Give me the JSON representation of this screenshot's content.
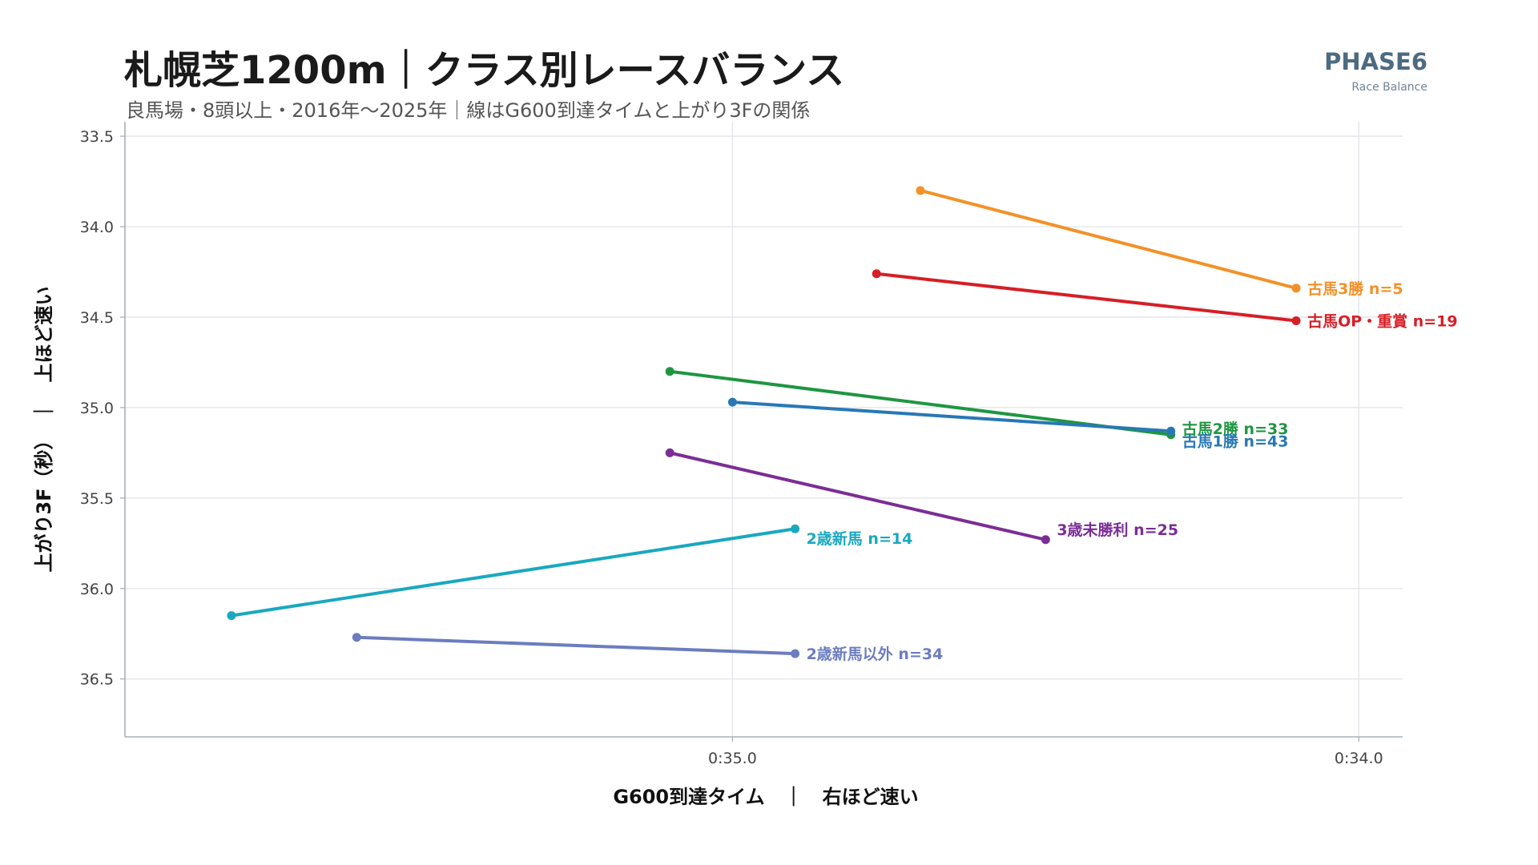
{
  "header": {
    "title": "札幌芝1200m｜クラス別レースバランス",
    "subtitle": "良馬場・8頭以上・2016年〜2025年｜線はG600到達タイムと上がり3Fの関係",
    "brand": "PHASE6",
    "brand_sub": "Race Balance"
  },
  "chart_data": {
    "type": "line",
    "title": "札幌芝1200m｜クラス別レースバランス",
    "subtitle": "良馬場・8頭以上・2016年〜2025年｜線はG600到達タイムと上がり3Fの関係",
    "xlabel": "G600到達タイム　｜　右ほど速い",
    "ylabel": "上がり3F（秒）　｜　上ほど速い",
    "x_reversed": true,
    "y_reversed": true,
    "xlim": [
      35.97,
      33.93
    ],
    "ylim": [
      36.82,
      33.42
    ],
    "x_ticks": [
      35.0,
      34.0
    ],
    "x_tick_labels": [
      "0:35.0",
      "0:34.0"
    ],
    "y_ticks": [
      33.5,
      34.0,
      34.5,
      35.0,
      35.5,
      36.0,
      36.5
    ],
    "y_tick_labels": [
      "33.5",
      "34.0",
      "34.5",
      "35.0",
      "35.5",
      "36.0",
      "36.5"
    ],
    "grid": true,
    "series": [
      {
        "name": "古馬3勝",
        "n": "n=5",
        "color": "#f39128",
        "points": [
          [
            34.7,
            33.8
          ],
          [
            34.1,
            34.34
          ]
        ]
      },
      {
        "name": "古馬OP・重賞",
        "n": "n=19",
        "color": "#d61f26",
        "points": [
          [
            34.77,
            34.26
          ],
          [
            34.1,
            34.52
          ]
        ]
      },
      {
        "name": "古馬2勝",
        "n": "n=33",
        "color": "#1e9641",
        "points": [
          [
            35.1,
            34.8
          ],
          [
            34.3,
            35.15
          ]
        ]
      },
      {
        "name": "古馬1勝",
        "n": "n=43",
        "color": "#2878b5",
        "points": [
          [
            35.0,
            34.97
          ],
          [
            34.3,
            35.13
          ]
        ]
      },
      {
        "name": "3歳未勝利",
        "n": "n=25",
        "color": "#7b2d96",
        "points": [
          [
            35.1,
            35.25
          ],
          [
            34.5,
            35.73
          ]
        ]
      },
      {
        "name": "2歳新馬",
        "n": "n=14",
        "color": "#1aa8bf",
        "points": [
          [
            35.8,
            36.15
          ],
          [
            34.9,
            35.67
          ]
        ]
      },
      {
        "name": "2歳新馬以外",
        "n": "n=34",
        "color": "#6b7dbf",
        "points": [
          [
            35.6,
            36.27
          ],
          [
            34.9,
            36.36
          ]
        ]
      }
    ]
  }
}
